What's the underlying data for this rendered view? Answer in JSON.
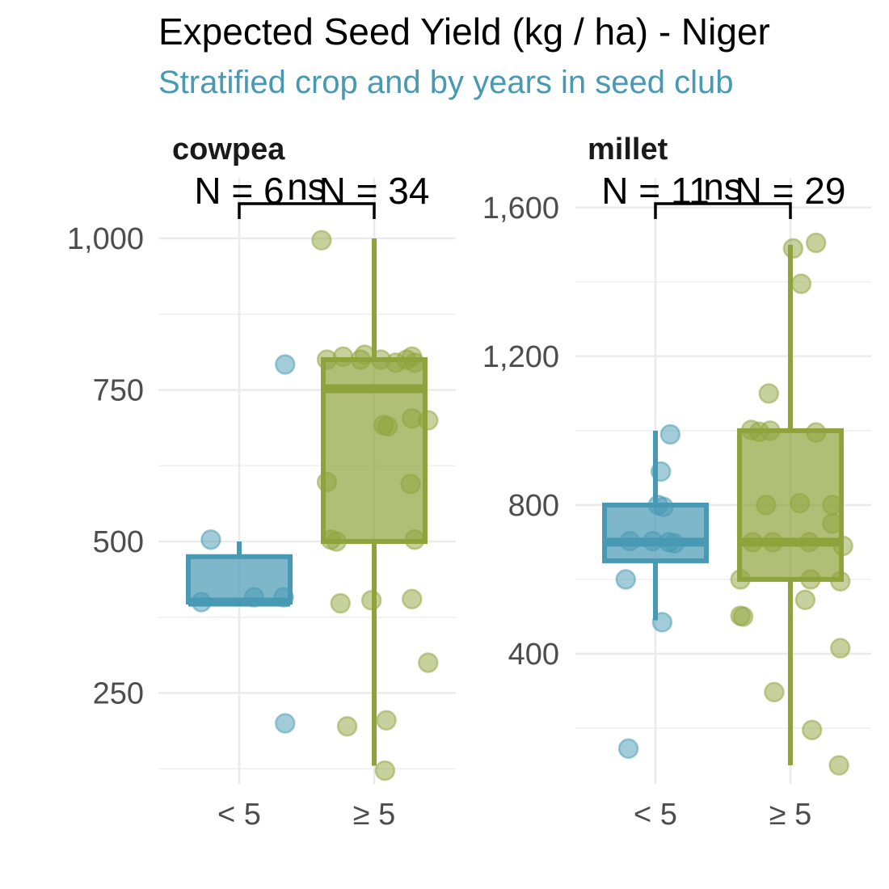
{
  "title": "Expected Seed Yield (kg / ha) - Niger",
  "subtitle": "Stratified crop and by years in seed club",
  "colors": {
    "lt5": "#4899b3",
    "ge5": "#8fa33c",
    "subtitle": "#4899b3",
    "grid": "#ebebeb"
  },
  "chart_data": [
    {
      "type": "box",
      "panel": "cowpea",
      "categories": [
        "< 5",
        "≥ 5"
      ],
      "ylim": [
        100,
        1100
      ],
      "yticks": [
        250,
        500,
        750,
        1000
      ],
      "ytick_labels": [
        "250",
        "500",
        "750",
        "1,000"
      ],
      "significance": "ns",
      "groups": [
        {
          "category": "< 5",
          "n_label": "N = 6",
          "box": {
            "q1": 400,
            "median": 400,
            "q3": 475,
            "whisker_low": 400,
            "whisker_high": 500
          },
          "points": [
            [
              -0.28,
              400
            ],
            [
              0.11,
              408
            ],
            [
              0.33,
              408
            ],
            [
              -0.21,
              503
            ],
            [
              0.34,
              792
            ],
            [
              0.34,
              200
            ]
          ]
        },
        {
          "category": "≥ 5",
          "n_label": "N = 34",
          "box": {
            "q1": 500,
            "median": 752,
            "q3": 800,
            "whisker_low": 130,
            "whisker_high": 1000
          },
          "points": [
            [
              -0.39,
              997
            ],
            [
              -0.35,
              800
            ],
            [
              -0.23,
              805
            ],
            [
              -0.1,
              800
            ],
            [
              -0.07,
              808
            ],
            [
              0.05,
              800
            ],
            [
              0.16,
              795
            ],
            [
              0.24,
              800
            ],
            [
              0.28,
              805
            ],
            [
              0.3,
              795
            ],
            [
              0.28,
              703
            ],
            [
              0.4,
              700
            ],
            [
              0.07,
              692
            ],
            [
              0.1,
              690
            ],
            [
              -0.35,
              598
            ],
            [
              0.27,
              595
            ],
            [
              -0.32,
              503
            ],
            [
              -0.28,
              500
            ],
            [
              0.3,
              503
            ],
            [
              -0.25,
              398
            ],
            [
              -0.02,
              403
            ],
            [
              0.28,
              405
            ],
            [
              0.4,
              300
            ],
            [
              0.09,
              205
            ],
            [
              -0.2,
              195
            ],
            [
              0.08,
              122
            ]
          ]
        }
      ]
    },
    {
      "type": "box",
      "panel": "millet",
      "categories": [
        "< 5",
        "≥ 5"
      ],
      "ylim": [
        50,
        1680
      ],
      "yticks": [
        400,
        800,
        1200,
        1600
      ],
      "ytick_labels": [
        "400",
        "800",
        "1,200",
        "1,600"
      ],
      "significance": "ns",
      "groups": [
        {
          "category": "< 5",
          "n_label": "N = 11",
          "box": {
            "q1": 650,
            "median": 700,
            "q3": 800,
            "whisker_low": 490,
            "whisker_high": 1000
          },
          "points": [
            [
              0.11,
              990
            ],
            [
              0.04,
              890
            ],
            [
              0.02,
              800
            ],
            [
              -0.19,
              703
            ],
            [
              -0.02,
              703
            ],
            [
              0.1,
              700
            ],
            [
              0.14,
              697
            ],
            [
              -0.22,
              600
            ],
            [
              0.05,
              485
            ],
            [
              -0.2,
              145
            ],
            [
              0.06,
              795
            ]
          ]
        },
        {
          "category": "≥ 5",
          "n_label": "N = 29",
          "box": {
            "q1": 600,
            "median": 700,
            "q3": 1000,
            "whisker_low": 100,
            "whisker_high": 1500
          },
          "points": [
            [
              0.02,
              1490
            ],
            [
              0.19,
              1505
            ],
            [
              0.08,
              1395
            ],
            [
              -0.16,
              1100
            ],
            [
              -0.29,
              1002
            ],
            [
              -0.23,
              997
            ],
            [
              -0.15,
              1000
            ],
            [
              0.19,
              995
            ],
            [
              -0.18,
              800
            ],
            [
              0.07,
              805
            ],
            [
              0.31,
              800
            ],
            [
              -0.28,
              700
            ],
            [
              -0.13,
              700
            ],
            [
              0.14,
              700
            ],
            [
              0.39,
              690
            ],
            [
              0.31,
              750
            ],
            [
              -0.37,
              600
            ],
            [
              0.15,
              600
            ],
            [
              0.37,
              595
            ],
            [
              -0.37,
              502
            ],
            [
              -0.35,
              500
            ],
            [
              0.11,
              545
            ],
            [
              0.37,
              415
            ],
            [
              -0.12,
              297
            ],
            [
              0.16,
              195
            ],
            [
              0.36,
              100
            ]
          ]
        }
      ]
    }
  ]
}
